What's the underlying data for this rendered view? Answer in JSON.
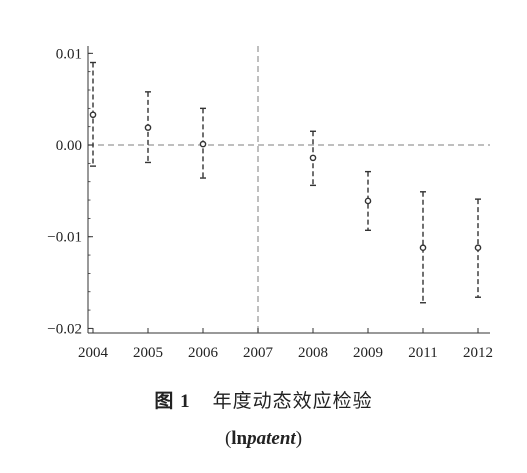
{
  "chart_data": {
    "type": "scatter",
    "x_categories": [
      "2004",
      "2005",
      "2006",
      "2007",
      "2008",
      "2009",
      "2011",
      "2012"
    ],
    "points": [
      {
        "x": "2004",
        "y": 0.0033,
        "lower": -0.0023,
        "upper": 0.009
      },
      {
        "x": "2005",
        "y": 0.0019,
        "lower": -0.0019,
        "upper": 0.0058
      },
      {
        "x": "2006",
        "y": 0.0001,
        "lower": -0.0036,
        "upper": 0.004
      },
      {
        "x": "2008",
        "y": -0.0014,
        "lower": -0.0044,
        "upper": 0.0015
      },
      {
        "x": "2009",
        "y": -0.0061,
        "lower": -0.0093,
        "upper": -0.0029
      },
      {
        "x": "2011",
        "y": -0.0112,
        "lower": -0.0172,
        "upper": -0.0051
      },
      {
        "x": "2012",
        "y": -0.0112,
        "lower": -0.0166,
        "upper": -0.0059
      }
    ],
    "yticks": [
      0.01,
      0.0,
      -0.01,
      -0.02
    ],
    "ytick_labels": [
      "0.01",
      "0.00",
      "−0.01",
      "−0.02"
    ],
    "ylim": [
      -0.0205,
      0.0108
    ],
    "reference_lines": {
      "horizontal_y": 0.0,
      "vertical_x": "2007"
    },
    "grid": false,
    "colors": {
      "points": "#333333",
      "reference": "#aaaaaa",
      "axis": "#333333"
    }
  },
  "caption": {
    "figure_number": "图 1",
    "title": "年度动态效应检验",
    "variable_open": "(",
    "variable_ln": "ln",
    "variable_name": "patent",
    "variable_close": ")"
  }
}
